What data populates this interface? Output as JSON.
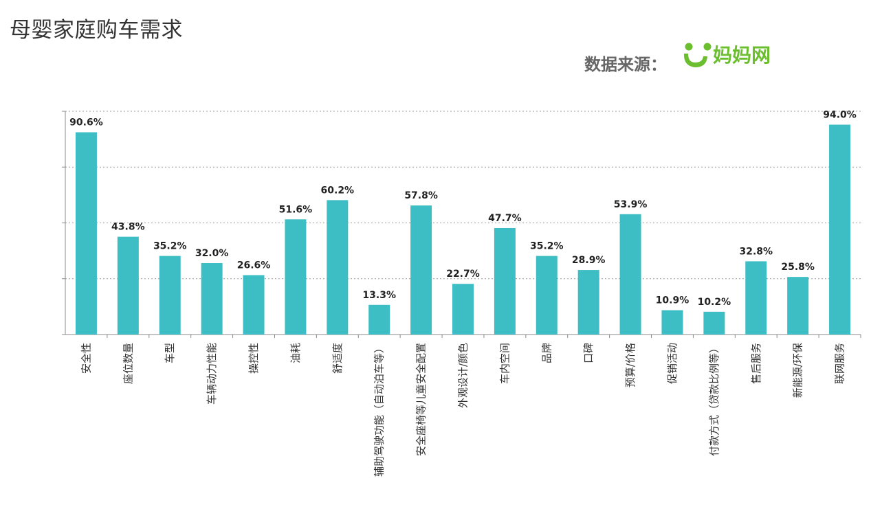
{
  "header": {
    "title": "母婴家庭购车需求",
    "source_label": "数据来源：",
    "logo_text": "妈妈网"
  },
  "colors": {
    "bar": "#3DBDC4",
    "logo": "#6BBE2E",
    "axis": "#888888"
  },
  "chart_data": {
    "type": "bar",
    "title": "母婴家庭购车需求",
    "categories": [
      "安全性",
      "座位数量",
      "车型",
      "车辆动力性能",
      "操控性",
      "油耗",
      "舒适度",
      "辅助驾驶功能（自动泊车等）",
      "安全座椅等儿童安全配置",
      "外观设计/颜色",
      "车内空间",
      "品牌",
      "口碑",
      "预算/价格",
      "促销活动",
      "付款方式（贷款比例等）",
      "售后服务",
      "新能源/环保",
      "联网服务"
    ],
    "values": [
      90.6,
      43.8,
      35.2,
      32.0,
      26.6,
      51.6,
      60.2,
      13.3,
      57.8,
      22.7,
      47.7,
      35.2,
      28.9,
      53.9,
      10.9,
      10.2,
      32.8,
      25.8,
      94.0
    ],
    "value_labels": [
      "90.6%",
      "43.8%",
      "35.2%",
      "32.0%",
      "26.6%",
      "51.6%",
      "60.2%",
      "13.3%",
      "57.8%",
      "22.7%",
      "47.7%",
      "35.2%",
      "28.9%",
      "53.9%",
      "10.9%",
      "10.2%",
      "32.8%",
      "25.8%",
      "94.0%"
    ],
    "ylim": [
      0,
      100
    ],
    "grid": true,
    "xlabel": "",
    "ylabel": ""
  }
}
